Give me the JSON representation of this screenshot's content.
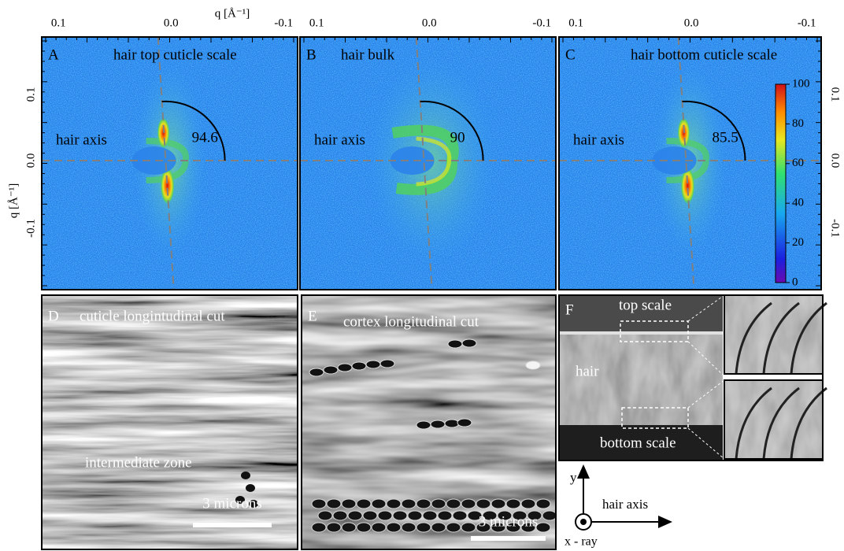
{
  "axes": {
    "top_label": "q [Å⁻¹]",
    "left_label": "q [Å⁻¹]",
    "top_ticks": [
      "0.1",
      "0.0",
      "-0.1"
    ],
    "left_ticks": [
      "0.1",
      "0.0",
      "-0.1"
    ],
    "right_ticks": [
      "0.1",
      "0.0",
      "-0.1"
    ]
  },
  "scattering_panels": [
    {
      "letter": "A",
      "title": "hair top cuticle scale",
      "axis_label": "hair axis",
      "angle": 94.6
    },
    {
      "letter": "B",
      "title": "hair bulk",
      "axis_label": "hair axis",
      "angle": 90
    },
    {
      "letter": "C",
      "title": "hair bottom cuticle scale",
      "axis_label": "hair axis",
      "angle": 85.5
    }
  ],
  "colorbar_ticks": [
    0,
    20,
    40,
    60,
    80,
    100
  ],
  "micrographs": [
    {
      "letter": "D",
      "title": "cuticle longintudinal cut",
      "annotation": "intermediate zone",
      "scale_bar": "3 microns"
    },
    {
      "letter": "E",
      "title": "cortex longitudinal cut",
      "scale_bar": "3 microns"
    }
  ],
  "sem_panel": {
    "letter": "F",
    "top_label": "top scale",
    "middle_label": "hair",
    "bottom_label": "bottom scale"
  },
  "orientation": {
    "y_label": "y",
    "x_label": "hair axis",
    "beam_label": "x - ray"
  }
}
